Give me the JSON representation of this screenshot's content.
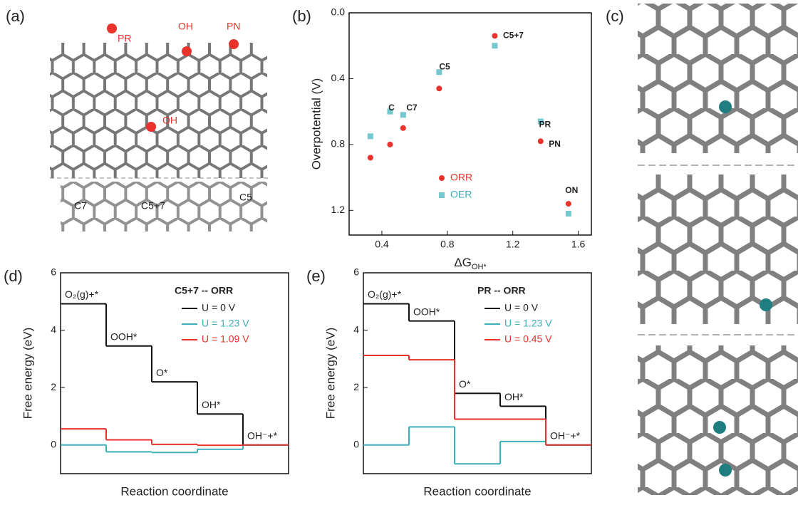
{
  "panel_a": {
    "label": "(a)",
    "sites": [
      "PR",
      "OH",
      "PN",
      "OH"
    ],
    "defects": [
      "C7",
      "C5+7",
      "C5"
    ]
  },
  "panel_c": {
    "label": "(c)"
  },
  "chart_data": [
    {
      "type": "scatter",
      "panel_label": "(b)",
      "xlabel": "ΔG",
      "xlabel_sub": "OH*",
      "ylabel": "Overpotential (V)",
      "xlim": [
        0.2,
        1.68
      ],
      "xticks": [
        0.4,
        0.8,
        1.2,
        1.6
      ],
      "ylim": [
        0,
        1.35
      ],
      "yticks": [
        {
          "value": 0,
          "label": "0.0"
        },
        0.4,
        0.8,
        1.2
      ],
      "inverted": true,
      "series": [
        {
          "name": "ORR",
          "color": "#e8322b",
          "x": [
            0.33,
            0.45,
            0.53,
            0.75,
            1.09,
            1.37,
            1.54
          ],
          "values": [
            0.88,
            0.8,
            0.7,
            0.46,
            0.14,
            0.78,
            1.16
          ]
        },
        {
          "name": "OER",
          "color": "#3bb0b8",
          "x": [
            0.33,
            0.45,
            0.53,
            0.75,
            1.09,
            1.37,
            1.54
          ],
          "values": [
            0.75,
            0.6,
            0.62,
            0.36,
            0.2,
            0.66,
            1.22
          ]
        }
      ],
      "annotations": [
        {
          "text": "C5+7",
          "x": 1.14,
          "y": 0.14
        },
        {
          "text": "C5",
          "x": 0.75,
          "y": 0.33
        },
        {
          "text": "C",
          "x": 0.44,
          "y": 0.58
        },
        {
          "text": "C7",
          "x": 0.55,
          "y": 0.58
        },
        {
          "text": "PR",
          "x": 1.36,
          "y": 0.68
        },
        {
          "text": "PN",
          "x": 1.42,
          "y": 0.8
        },
        {
          "text": "ON",
          "x": 1.52,
          "y": 1.08
        }
      ]
    },
    {
      "type": "step",
      "panel_label": "(d)",
      "title": "C5+7 -- ORR",
      "ylabel": "Free energy (eV)",
      "xlabel": "Reaction coordinate",
      "ylim": [
        -1,
        6
      ],
      "yticks": [
        0,
        2,
        4,
        6
      ],
      "categories": [
        "O₂(g)+*",
        "OOH*",
        "O*",
        "OH*",
        "OH⁻+*"
      ],
      "series": [
        {
          "name": "U = 0 V",
          "color": "#111111",
          "values": [
            4.92,
            3.45,
            2.2,
            1.08,
            0
          ]
        },
        {
          "name": "U = 1.23 V",
          "color": "#3bb0b8",
          "values": [
            0,
            -0.24,
            -0.26,
            -0.15,
            0
          ]
        },
        {
          "name": "U = 1.09 V",
          "color": "#e8322b",
          "values": [
            0.56,
            0.18,
            0.02,
            -0.01,
            0
          ]
        }
      ]
    },
    {
      "type": "step",
      "panel_label": "(e)",
      "title": "PR -- ORR",
      "ylabel": "Free energy (eV)",
      "xlabel": "Reaction coordinate",
      "ylim": [
        -1,
        6
      ],
      "yticks": [
        0,
        2,
        4,
        6
      ],
      "categories": [
        "O₂(g)+*",
        "OOH*",
        "O*",
        "OH*",
        "OH⁻+*"
      ],
      "series": [
        {
          "name": "U = 0 V",
          "color": "#111111",
          "values": [
            4.92,
            4.32,
            1.8,
            1.35,
            0
          ]
        },
        {
          "name": "U = 1.23 V",
          "color": "#3bb0b8",
          "values": [
            0,
            0.63,
            -0.66,
            0.12,
            0
          ]
        },
        {
          "name": "U = 0.45 V",
          "color": "#e8322b",
          "values": [
            3.12,
            2.97,
            0.9,
            0.9,
            0
          ]
        }
      ]
    }
  ]
}
